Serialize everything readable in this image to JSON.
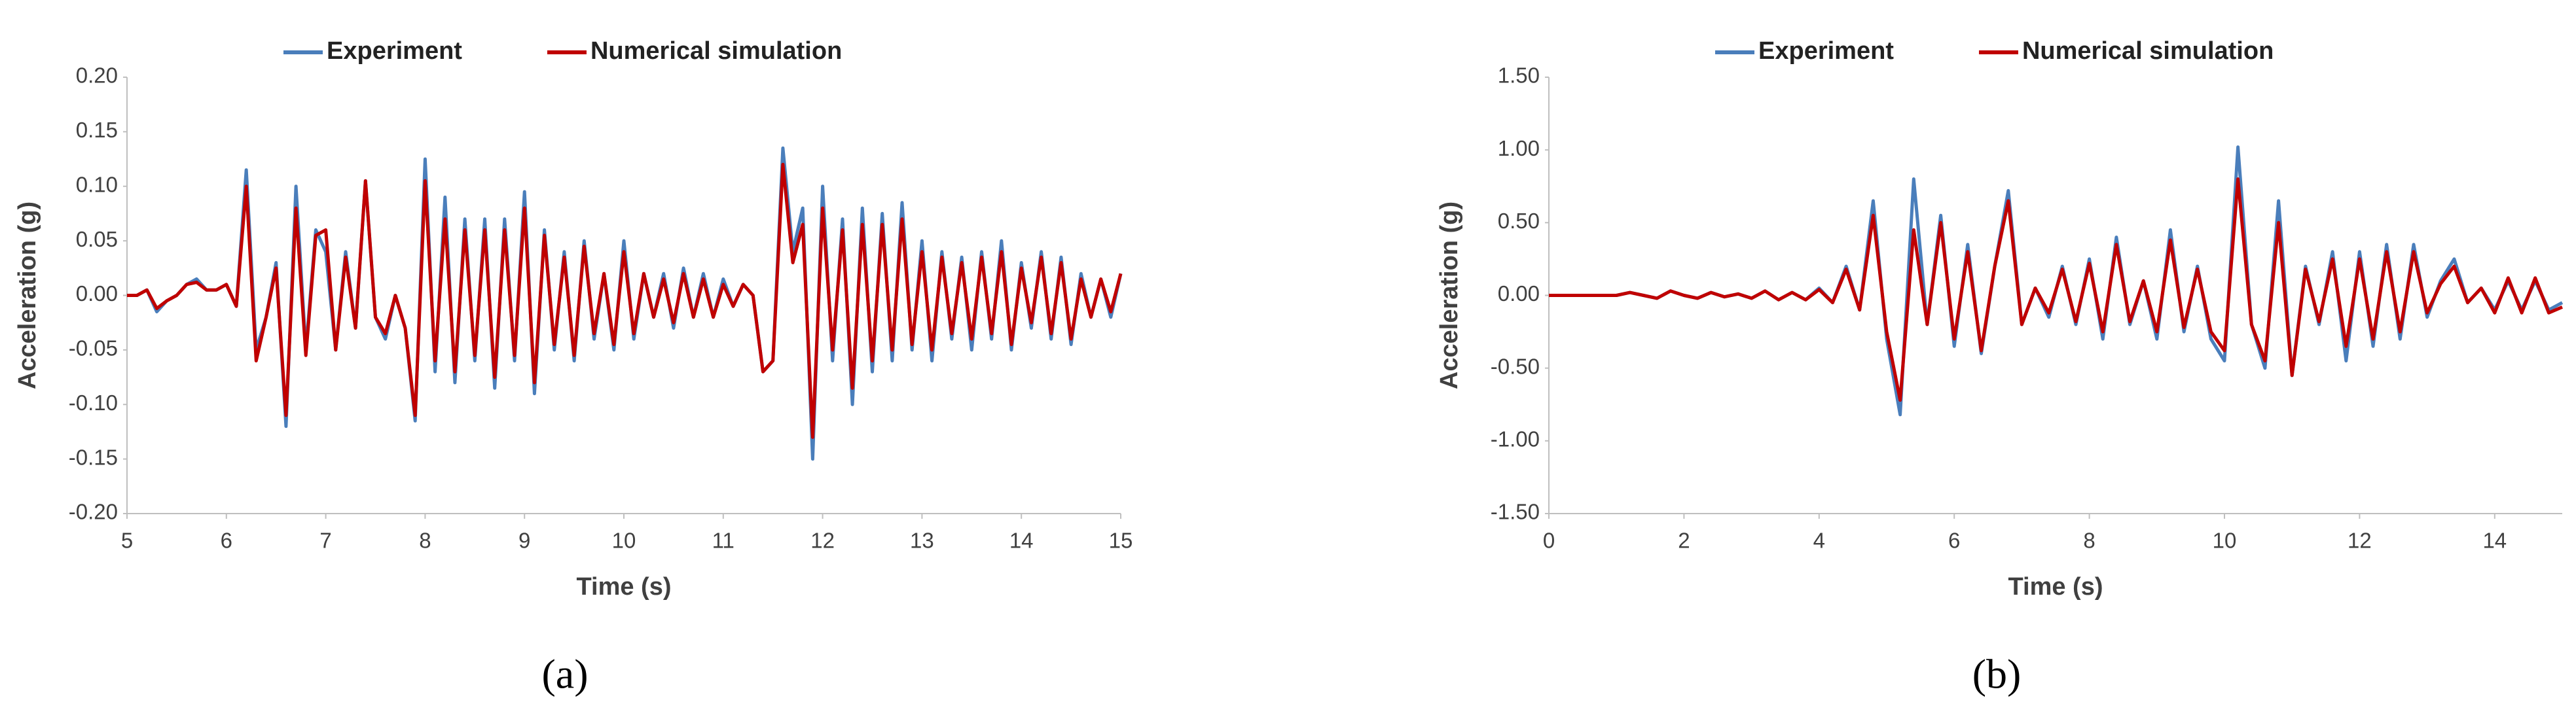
{
  "chart_data": [
    {
      "type": "line",
      "label": "(a)",
      "x_label": "Time (s)",
      "y_label": "Acceleration (g)",
      "legend": "top",
      "x": [
        5,
        5.1,
        5.2,
        5.3,
        5.4,
        5.5,
        5.6,
        5.7,
        5.8,
        5.9,
        6,
        6.1,
        6.2,
        6.3,
        6.4,
        6.5,
        6.6,
        6.7,
        6.8,
        6.9,
        7,
        7.1,
        7.2,
        7.3,
        7.4,
        7.5,
        7.6,
        7.7,
        7.8,
        7.9,
        8,
        8.1,
        8.2,
        8.3,
        8.4,
        8.5,
        8.6,
        8.7,
        8.8,
        8.9,
        9,
        9.1,
        9.2,
        9.3,
        9.4,
        9.5,
        9.6,
        9.7,
        9.8,
        9.9,
        10,
        10.1,
        10.2,
        10.3,
        10.4,
        10.5,
        10.6,
        10.7,
        10.8,
        10.9,
        11,
        11.1,
        11.2,
        11.3,
        11.4,
        11.5,
        11.6,
        11.7,
        11.8,
        11.9,
        12,
        12.1,
        12.2,
        12.3,
        12.4,
        12.5,
        12.6,
        12.7,
        12.8,
        12.9,
        13,
        13.1,
        13.2,
        13.3,
        13.4,
        13.5,
        13.6,
        13.7,
        13.8,
        13.9,
        14,
        14.1,
        14.2,
        14.3,
        14.4,
        14.5,
        14.6,
        14.7,
        14.8,
        14.9,
        15
      ],
      "series": [
        {
          "name": "Experiment",
          "color": "#4a7ebb",
          "values": [
            0,
            0,
            0.005,
            -0.015,
            -0.005,
            0,
            0.01,
            0.015,
            0.005,
            0.005,
            0.01,
            -0.01,
            0.115,
            -0.05,
            -0.02,
            0.03,
            -0.12,
            0.1,
            -0.05,
            0.06,
            0.04,
            -0.05,
            0.04,
            -0.03,
            0.105,
            -0.02,
            -0.04,
            0,
            -0.03,
            -0.115,
            0.125,
            -0.07,
            0.09,
            -0.08,
            0.07,
            -0.06,
            0.07,
            -0.085,
            0.07,
            -0.06,
            0.095,
            -0.09,
            0.06,
            -0.05,
            0.04,
            -0.06,
            0.05,
            -0.04,
            0.02,
            -0.05,
            0.05,
            -0.04,
            0.02,
            -0.02,
            0.02,
            -0.03,
            0.025,
            -0.02,
            0.02,
            -0.02,
            0.015,
            -0.01,
            0.01,
            0,
            -0.07,
            -0.06,
            0.135,
            0.04,
            0.08,
            -0.15,
            0.1,
            -0.06,
            0.07,
            -0.1,
            0.08,
            -0.07,
            0.075,
            -0.06,
            0.085,
            -0.05,
            0.05,
            -0.06,
            0.04,
            -0.04,
            0.035,
            -0.05,
            0.04,
            -0.04,
            0.05,
            -0.05,
            0.03,
            -0.03,
            0.04,
            -0.04,
            0.035,
            -0.045,
            0.02,
            -0.02,
            0.015,
            -0.02,
            0.02
          ]
        },
        {
          "name": "Numerical simulation",
          "color": "#c00000",
          "values": [
            0,
            0,
            0.005,
            -0.012,
            -0.005,
            0,
            0.01,
            0.012,
            0.005,
            0.005,
            0.01,
            -0.01,
            0.1,
            -0.06,
            -0.02,
            0.025,
            -0.11,
            0.08,
            -0.055,
            0.055,
            0.06,
            -0.05,
            0.035,
            -0.03,
            0.105,
            -0.02,
            -0.035,
            0,
            -0.03,
            -0.11,
            0.105,
            -0.06,
            0.07,
            -0.07,
            0.06,
            -0.055,
            0.06,
            -0.075,
            0.06,
            -0.055,
            0.08,
            -0.08,
            0.055,
            -0.045,
            0.035,
            -0.055,
            0.045,
            -0.035,
            0.02,
            -0.045,
            0.04,
            -0.035,
            0.02,
            -0.02,
            0.015,
            -0.025,
            0.02,
            -0.02,
            0.015,
            -0.02,
            0.01,
            -0.01,
            0.01,
            0,
            -0.07,
            -0.06,
            0.12,
            0.03,
            0.065,
            -0.13,
            0.08,
            -0.05,
            0.06,
            -0.085,
            0.065,
            -0.06,
            0.065,
            -0.05,
            0.07,
            -0.045,
            0.04,
            -0.05,
            0.035,
            -0.035,
            0.03,
            -0.04,
            0.035,
            -0.035,
            0.04,
            -0.045,
            0.025,
            -0.025,
            0.035,
            -0.035,
            0.03,
            -0.04,
            0.015,
            -0.02,
            0.015,
            -0.015,
            0.02
          ]
        }
      ],
      "xlim": [
        5,
        15
      ],
      "xticks": [
        5,
        6,
        7,
        8,
        9,
        10,
        11,
        12,
        13,
        14,
        15
      ],
      "ylim": [
        -0.2,
        0.2
      ],
      "yticks": [
        {
          "value": -0.2,
          "label": "-0.20"
        },
        {
          "value": -0.15,
          "label": "-0.15"
        },
        {
          "value": -0.1,
          "label": "-0.10"
        },
        {
          "value": -0.05,
          "label": "-0.05"
        },
        {
          "value": 0,
          "label": "0.00"
        },
        {
          "value": 0.05,
          "label": "0.05"
        },
        {
          "value": 0.1,
          "label": "0.10"
        },
        {
          "value": 0.15,
          "label": "0.15"
        },
        {
          "value": 0.2,
          "label": "0.20"
        }
      ]
    },
    {
      "type": "line",
      "label": "(b)",
      "x_label": "Time (s)",
      "y_label": "Acceleration (g)",
      "legend": "top",
      "x": [
        0,
        0.2,
        0.4,
        0.6,
        0.8,
        1,
        1.2,
        1.4,
        1.6,
        1.8,
        2,
        2.2,
        2.4,
        2.6,
        2.8,
        3,
        3.2,
        3.4,
        3.6,
        3.8,
        4,
        4.2,
        4.4,
        4.6,
        4.8,
        5,
        5.2,
        5.4,
        5.6,
        5.8,
        6,
        6.2,
        6.4,
        6.6,
        6.8,
        7,
        7.2,
        7.4,
        7.6,
        7.8,
        8,
        8.2,
        8.4,
        8.6,
        8.8,
        9,
        9.2,
        9.4,
        9.6,
        9.8,
        10,
        10.2,
        10.4,
        10.6,
        10.8,
        11,
        11.2,
        11.4,
        11.6,
        11.8,
        12,
        12.2,
        12.4,
        12.6,
        12.8,
        13,
        13.2,
        13.4,
        13.6,
        13.8,
        14,
        14.2,
        14.4,
        14.6,
        14.8,
        15
      ],
      "series": [
        {
          "name": "Experiment",
          "color": "#4a7ebb",
          "values": [
            0,
            0,
            0,
            0,
            0,
            0,
            0.02,
            0,
            -0.02,
            0.03,
            0,
            -0.02,
            0.02,
            -0.01,
            0.01,
            -0.02,
            0.03,
            -0.03,
            0.02,
            -0.03,
            0.05,
            -0.05,
            0.2,
            -0.1,
            0.65,
            -0.3,
            -0.82,
            0.8,
            -0.2,
            0.55,
            -0.35,
            0.35,
            -0.4,
            0.2,
            0.72,
            -0.2,
            0.05,
            -0.15,
            0.2,
            -0.2,
            0.25,
            -0.3,
            0.4,
            -0.2,
            0.1,
            -0.3,
            0.45,
            -0.25,
            0.2,
            -0.3,
            -0.45,
            1.02,
            -0.2,
            -0.5,
            0.65,
            -0.55,
            0.2,
            -0.2,
            0.3,
            -0.45,
            0.3,
            -0.35,
            0.35,
            -0.3,
            0.35,
            -0.15,
            0.1,
            0.25,
            -0.05,
            0.05,
            -0.1,
            0.1,
            -0.1,
            0.1,
            -0.1,
            -0.05
          ]
        },
        {
          "name": "Numerical simulation",
          "color": "#c00000",
          "values": [
            0,
            0,
            0,
            0,
            0,
            0,
            0.02,
            0,
            -0.02,
            0.03,
            0,
            -0.02,
            0.02,
            -0.01,
            0.01,
            -0.02,
            0.03,
            -0.03,
            0.02,
            -0.03,
            0.04,
            -0.05,
            0.18,
            -0.1,
            0.55,
            -0.25,
            -0.72,
            0.45,
            -0.2,
            0.5,
            -0.3,
            0.3,
            -0.38,
            0.2,
            0.65,
            -0.2,
            0.05,
            -0.12,
            0.18,
            -0.18,
            0.22,
            -0.25,
            0.35,
            -0.18,
            0.1,
            -0.25,
            0.38,
            -0.22,
            0.18,
            -0.25,
            -0.38,
            0.8,
            -0.2,
            -0.45,
            0.5,
            -0.55,
            0.18,
            -0.18,
            0.25,
            -0.35,
            0.25,
            -0.3,
            0.3,
            -0.25,
            0.3,
            -0.12,
            0.08,
            0.2,
            -0.05,
            0.05,
            -0.12,
            0.12,
            -0.12,
            0.12,
            -0.12,
            -0.08
          ]
        }
      ],
      "xlim": [
        0,
        15
      ],
      "xticks": [
        0,
        2,
        4,
        6,
        8,
        10,
        12,
        14
      ],
      "ylim": [
        -1.5,
        1.5
      ],
      "yticks": [
        {
          "value": -1.5,
          "label": "-1.50"
        },
        {
          "value": -1,
          "label": "-1.00"
        },
        {
          "value": -0.5,
          "label": "-0.50"
        },
        {
          "value": 0,
          "label": "0.00"
        },
        {
          "value": 0.5,
          "label": "0.50"
        },
        {
          "value": 1,
          "label": "1.00"
        },
        {
          "value": 1.5,
          "label": "1.50"
        }
      ]
    }
  ]
}
